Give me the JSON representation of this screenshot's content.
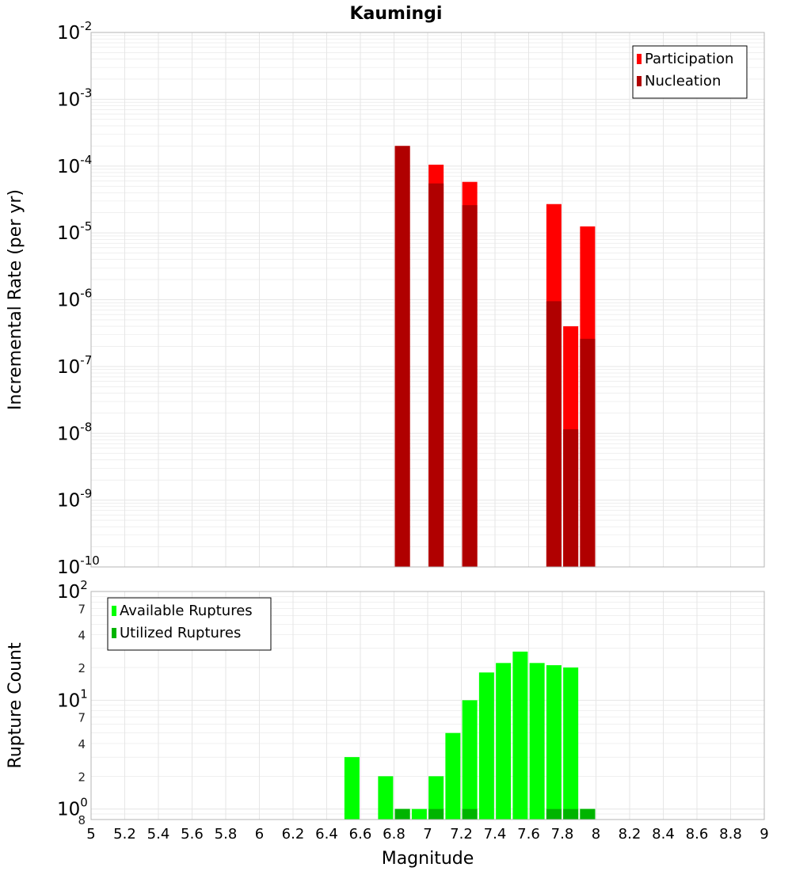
{
  "title": "Kaumingi",
  "x_label": "Magnitude",
  "colors": {
    "participation": "#ff0000",
    "nucleation": "#b00000",
    "available": "#00ff00",
    "utilized": "#00b400",
    "grid": "#e6e6e6",
    "frame": "#b4b4b4"
  },
  "chart_data": [
    {
      "type": "bar",
      "title": "Kaumingi",
      "xlabel": "Magnitude",
      "ylabel": "Incremental Rate (per yr)",
      "y_scale": "log",
      "xlim": [
        5,
        9
      ],
      "ylim": [
        1e-10,
        0.01
      ],
      "x_ticks": [
        5,
        5.2,
        5.4,
        5.6,
        5.8,
        6,
        6.2,
        6.4,
        6.6,
        6.8,
        7,
        7.2,
        7.4,
        7.6,
        7.8,
        8,
        8.2,
        8.4,
        8.6,
        8.8,
        9
      ],
      "y_tick_exponents": [
        -10,
        -9,
        -8,
        -7,
        -6,
        -5,
        -4,
        -3,
        -2
      ],
      "legend_position": "top-right",
      "series": [
        {
          "name": "Participation",
          "x": [
            6.85,
            7.05,
            7.25,
            7.75,
            7.85,
            7.95
          ],
          "values": [
            0.0002,
            0.000105,
            5.8e-05,
            2.7e-05,
            4e-07,
            1.25e-05
          ]
        },
        {
          "name": "Nucleation",
          "x": [
            6.85,
            7.05,
            7.25,
            7.75,
            7.85,
            7.95
          ],
          "values": [
            0.0002,
            5.5e-05,
            2.6e-05,
            9.5e-07,
            1.15e-08,
            2.6e-07
          ]
        }
      ]
    },
    {
      "type": "bar",
      "xlabel": "Magnitude",
      "ylabel": "Rupture Count",
      "y_scale": "log",
      "xlim": [
        5,
        9
      ],
      "ylim": [
        0.8,
        100
      ],
      "x_ticks": [
        5,
        5.2,
        5.4,
        5.6,
        5.8,
        6,
        6.2,
        6.4,
        6.6,
        6.8,
        7,
        7.2,
        7.4,
        7.6,
        7.8,
        8,
        8.2,
        8.4,
        8.6,
        8.8,
        9
      ],
      "y_tick_exponents": [
        0,
        1,
        2
      ],
      "y_minor_tick_labels": [
        {
          "value": 0.8,
          "label": "8"
        },
        {
          "value": 2,
          "label": "2"
        },
        {
          "value": 4,
          "label": "4"
        },
        {
          "value": 7,
          "label": "7"
        },
        {
          "value": 20,
          "label": "2"
        },
        {
          "value": 40,
          "label": "4"
        },
        {
          "value": 70,
          "label": "7"
        }
      ],
      "legend_position": "top-left",
      "series": [
        {
          "name": "Available Ruptures",
          "x": [
            6.55,
            6.75,
            6.85,
            6.95,
            7.05,
            7.15,
            7.25,
            7.35,
            7.45,
            7.55,
            7.65,
            7.75,
            7.85,
            7.95
          ],
          "values": [
            3,
            2,
            1,
            1,
            2,
            5,
            10,
            18,
            22,
            28,
            22,
            21,
            20,
            1
          ]
        },
        {
          "name": "Utilized Ruptures",
          "x": [
            6.85,
            7.05,
            7.25,
            7.75,
            7.85,
            7.95
          ],
          "values": [
            1,
            1,
            1,
            1,
            1,
            1
          ]
        }
      ]
    }
  ]
}
